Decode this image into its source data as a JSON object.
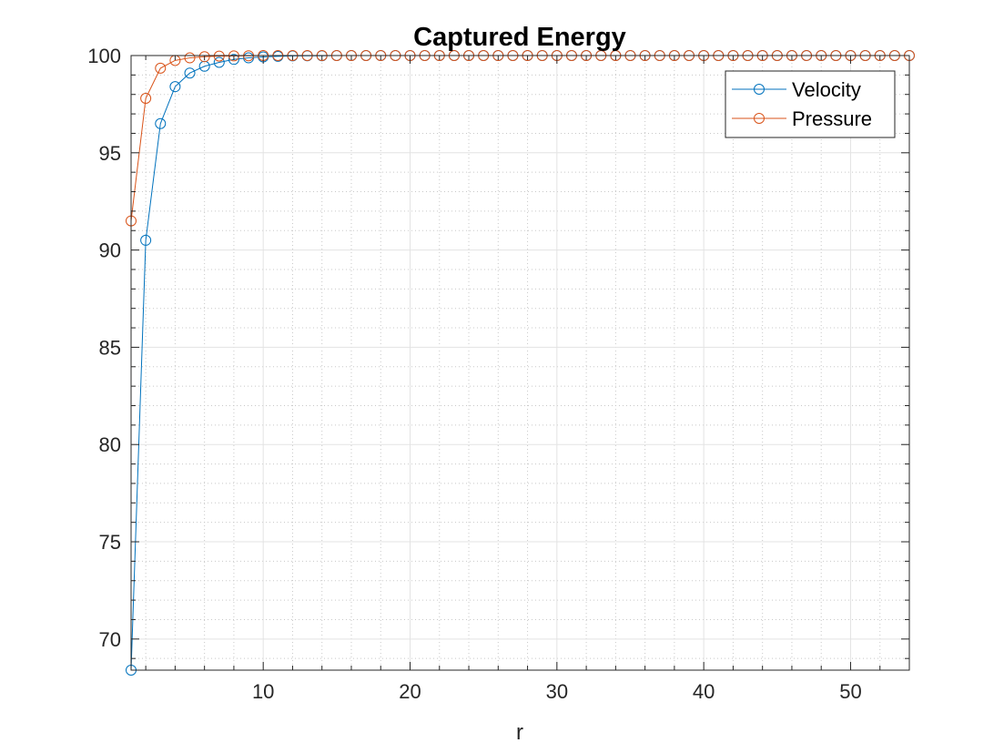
{
  "chart_data": {
    "type": "line",
    "title": "Captured Energy",
    "xlabel": "r",
    "ylabel": "",
    "xlim": [
      1,
      54
    ],
    "ylim": [
      68.4,
      100
    ],
    "xticks": [
      10,
      20,
      30,
      40,
      50
    ],
    "yticks": [
      70,
      75,
      80,
      85,
      90,
      95,
      100
    ],
    "grid": true,
    "minor_grid": true,
    "legend_position": "top-right",
    "colors": {
      "velocity": "#0072BD",
      "pressure": "#D95319"
    },
    "series": [
      {
        "name": "Velocity",
        "color": "#0072BD",
        "x": [
          1,
          2,
          3,
          4,
          5,
          6,
          7,
          8,
          9,
          10,
          11,
          12,
          13,
          14,
          15,
          16,
          17,
          18,
          19,
          20,
          21,
          22,
          23,
          24,
          25,
          26,
          27,
          28,
          29,
          30,
          31,
          32,
          33,
          34,
          35,
          36,
          37,
          38,
          39,
          40,
          41,
          42,
          43,
          44,
          45,
          46,
          47,
          48,
          49,
          50,
          51,
          52,
          53,
          54
        ],
        "y": [
          68.4,
          90.5,
          96.5,
          98.4,
          99.1,
          99.45,
          99.65,
          99.8,
          99.88,
          99.93,
          99.96,
          99.98,
          99.99,
          99.99,
          100,
          100,
          100,
          100,
          100,
          100,
          100,
          100,
          100,
          100,
          100,
          100,
          100,
          100,
          100,
          100,
          100,
          100,
          100,
          100,
          100,
          100,
          100,
          100,
          100,
          100,
          100,
          100,
          100,
          100,
          100,
          100,
          100,
          100,
          100,
          100,
          100,
          100,
          100,
          100
        ]
      },
      {
        "name": "Pressure",
        "color": "#D95319",
        "x": [
          1,
          2,
          3,
          4,
          5,
          6,
          7,
          8,
          9,
          10,
          11,
          12,
          13,
          14,
          15,
          16,
          17,
          18,
          19,
          20,
          21,
          22,
          23,
          24,
          25,
          26,
          27,
          28,
          29,
          30,
          31,
          32,
          33,
          34,
          35,
          36,
          37,
          38,
          39,
          40,
          41,
          42,
          43,
          44,
          45,
          46,
          47,
          48,
          49,
          50,
          51,
          52,
          53,
          54
        ],
        "y": [
          91.5,
          97.8,
          99.35,
          99.75,
          99.88,
          99.94,
          99.97,
          99.98,
          99.99,
          100,
          100,
          100,
          100,
          100,
          100,
          100,
          100,
          100,
          100,
          100,
          100,
          100,
          100,
          100,
          100,
          100,
          100,
          100,
          100,
          100,
          100,
          100,
          100,
          100,
          100,
          100,
          100,
          100,
          100,
          100,
          100,
          100,
          100,
          100,
          100,
          100,
          100,
          100,
          100,
          100,
          100,
          100,
          100,
          100
        ]
      }
    ]
  }
}
